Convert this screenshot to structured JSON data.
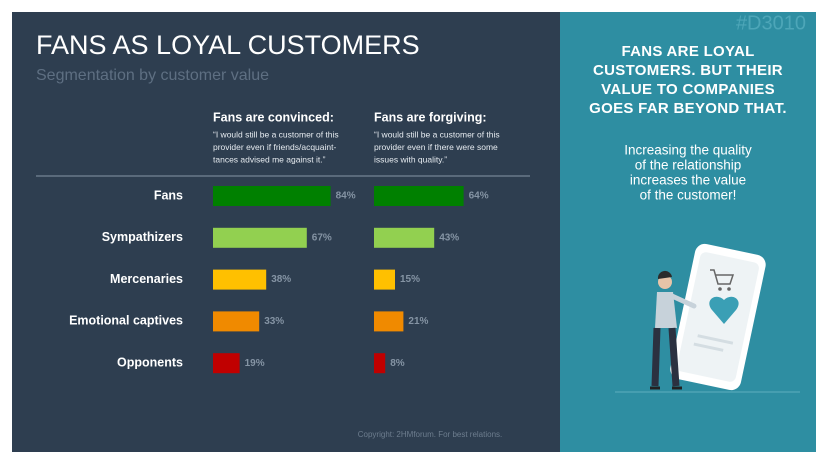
{
  "header": {
    "title": "FANS AS LOYAL CUSTOMERS",
    "subtitle": "Segmentation by customer value",
    "tag": "#D3010"
  },
  "chart_data": {
    "type": "bar",
    "orientation": "horizontal",
    "categories": [
      "Fans",
      "Sympathizers",
      "Mercenaries",
      "Emotional captives",
      "Opponents"
    ],
    "colors": [
      "#008000",
      "#92d050",
      "#ffc000",
      "#f08a00",
      "#c00000"
    ],
    "series": [
      {
        "name": "Fans are convinced:",
        "note": [
          "“I would still be a customer of this",
          "provider even if friends/acquaint-",
          "tances advised me against it.”"
        ],
        "values": [
          84,
          67,
          38,
          33,
          19
        ],
        "value_labels": [
          "84%",
          "67%",
          "38%",
          "33%",
          "19%"
        ]
      },
      {
        "name": "Fans are forgiving:",
        "note": [
          "“I would still be a customer of this",
          "provider even if there were some",
          "issues with quality.”"
        ],
        "values": [
          64,
          43,
          15,
          21,
          8
        ],
        "value_labels": [
          "64%",
          "43%",
          "15%",
          "21%",
          "8%"
        ]
      }
    ]
  },
  "panel": {
    "heading": [
      "FANS ARE LOYAL",
      "CUSTOMERS. BUT THEIR",
      "VALUE TO COMPANIES",
      "GOES FAR BEYOND THAT."
    ],
    "body": [
      "Increasing the quality",
      "of the relationship",
      "increases the value",
      "of the customer!"
    ]
  },
  "footer": {
    "copyright": "Copyright: 2HMforum. For best relations."
  }
}
